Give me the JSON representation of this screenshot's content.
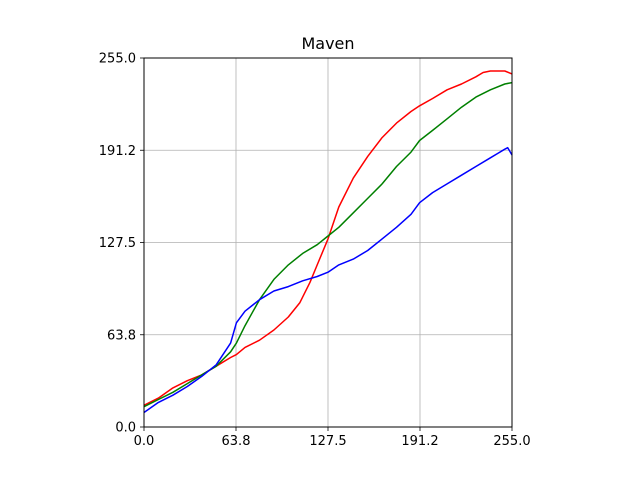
{
  "chart_data": {
    "type": "line",
    "title": "Maven",
    "xlabel": "",
    "ylabel": "",
    "xlim": [
      0,
      255
    ],
    "ylim": [
      0,
      255
    ],
    "xticks": [
      0,
      63.75,
      127.5,
      191.25,
      255
    ],
    "xtick_labels": [
      "0.0",
      "63.8",
      "127.5",
      "191.2",
      "255.0"
    ],
    "yticks": [
      0,
      63.75,
      127.5,
      191.25,
      255
    ],
    "ytick_labels": [
      "0.0",
      "63.8",
      "127.5",
      "191.2",
      "255.0"
    ],
    "grid": true,
    "legend": "none",
    "series": [
      {
        "color": "#ff0000",
        "x": [
          0,
          10,
          20,
          30,
          40,
          50,
          60,
          64,
          70,
          80,
          90,
          100,
          108,
          115,
          120,
          127.5,
          135,
          145,
          155,
          165,
          175,
          185,
          191,
          200,
          210,
          220,
          230,
          235,
          240,
          245,
          250,
          255
        ],
        "y": [
          15,
          20,
          27,
          32,
          36,
          42,
          48,
          50,
          55,
          60,
          67,
          76,
          86,
          100,
          112,
          130,
          152,
          172,
          187,
          200,
          210,
          218,
          222,
          227,
          233,
          237,
          242,
          245,
          246,
          246,
          246,
          244
        ]
      },
      {
        "color": "#008000",
        "x": [
          0,
          10,
          20,
          30,
          40,
          50,
          60,
          64,
          70,
          80,
          90,
          100,
          110,
          120,
          127.5,
          135,
          145,
          155,
          165,
          175,
          185,
          191,
          200,
          210,
          220,
          230,
          240,
          250,
          255
        ],
        "y": [
          14,
          19,
          24,
          30,
          36,
          42,
          52,
          58,
          70,
          88,
          102,
          112,
          120,
          126,
          132,
          138,
          148,
          158,
          168,
          180,
          190,
          198,
          205,
          213,
          221,
          228,
          233,
          237,
          238
        ]
      },
      {
        "color": "#0000ff",
        "x": [
          0,
          10,
          20,
          30,
          40,
          50,
          60,
          64,
          70,
          80,
          90,
          100,
          110,
          120,
          127.5,
          135,
          145,
          155,
          165,
          175,
          185,
          191,
          200,
          210,
          220,
          230,
          240,
          245,
          250,
          252,
          255
        ],
        "y": [
          10,
          17,
          22,
          28,
          35,
          43,
          58,
          72,
          80,
          88,
          94,
          97,
          101,
          104,
          107,
          112,
          116,
          122,
          130,
          138,
          147,
          155,
          162,
          168,
          174,
          180,
          186,
          189,
          192,
          193,
          188
        ]
      }
    ]
  }
}
